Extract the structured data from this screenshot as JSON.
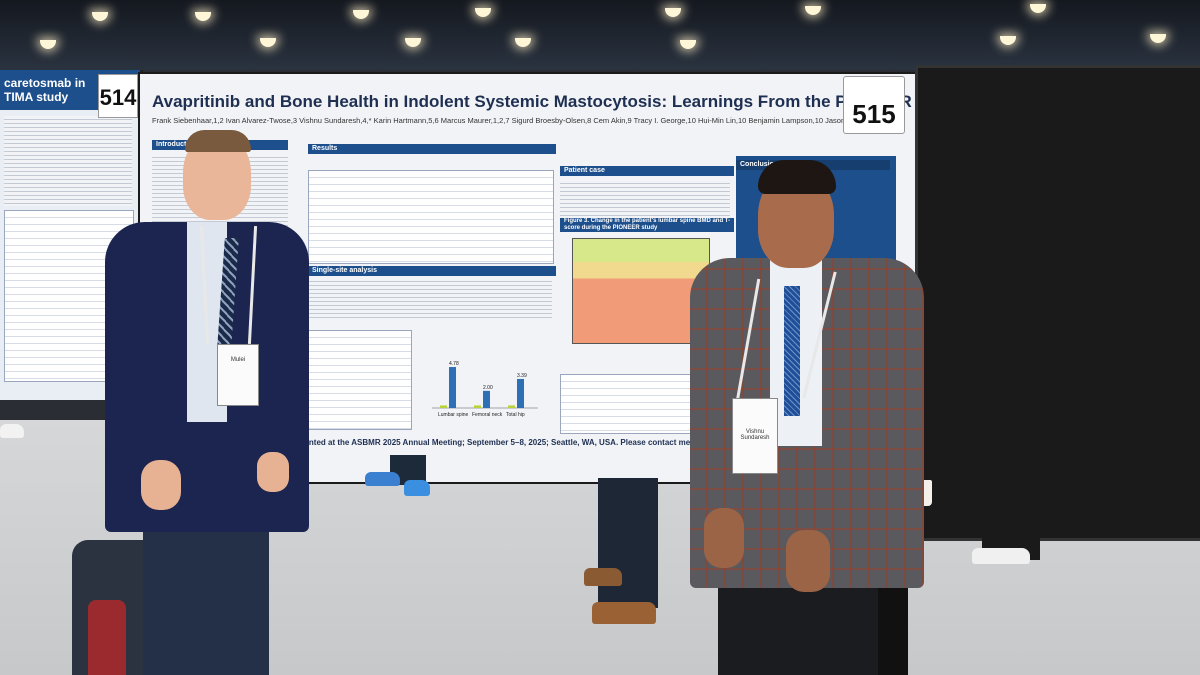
{
  "poster_main": {
    "number": "515",
    "title": "Avapritinib and Bone Health in Indolent Systemic Mastocytosis: Learnings From the PIONEER Trial",
    "authors": "Frank Siebenhaar,1,2 Ivan Alvarez-Twose,3 Vishnu Sundaresh,4,* Karin Hartmann,5,6 Marcus Maurer,1,2,7 Sigurd Broesby-Olsen,8 Cem Akin,9 Tracy I. George,10 Hui-Min Lin,10 Benjamin Lampson,10 Jason Gotlib11",
    "sections": {
      "introduction": "Introduction",
      "results": "Results",
      "patient_case": "Patient case",
      "conclusions": "Conclusio",
      "single_site": "Single-site analysis"
    },
    "figure_title": "Figure 3. Change in the patient's lumbar spine BMD and T-score during the PIONEER study",
    "footer": "sented at the ASBMR 2025 Annual Meeting; September 5–8, 2025; Seattle, WA, USA. Please contact medinfo@blueprintmedicines.com for permission to reprint and/or distribute."
  },
  "poster_left": {
    "number": "514",
    "title_lines": [
      "caretosmab in",
      "TIMA study"
    ]
  },
  "chart_data": {
    "type": "bar",
    "categories": [
      "Lumbar spine",
      "Femoral neck",
      "Total hip"
    ],
    "series": [
      {
        "name": "",
        "values": [
          0.3,
          0.3,
          0.3
        ]
      },
      {
        "name": "",
        "values": [
          4.78,
          2.0,
          3.39
        ]
      }
    ],
    "value_labels": [
      "4.78",
      "2.00",
      "3.39"
    ],
    "colors": [
      "#b9d43a",
      "#2e6fb5"
    ]
  },
  "badges": {
    "left_person": "Mulei",
    "right_person": "Vishnu Sundaresh"
  }
}
